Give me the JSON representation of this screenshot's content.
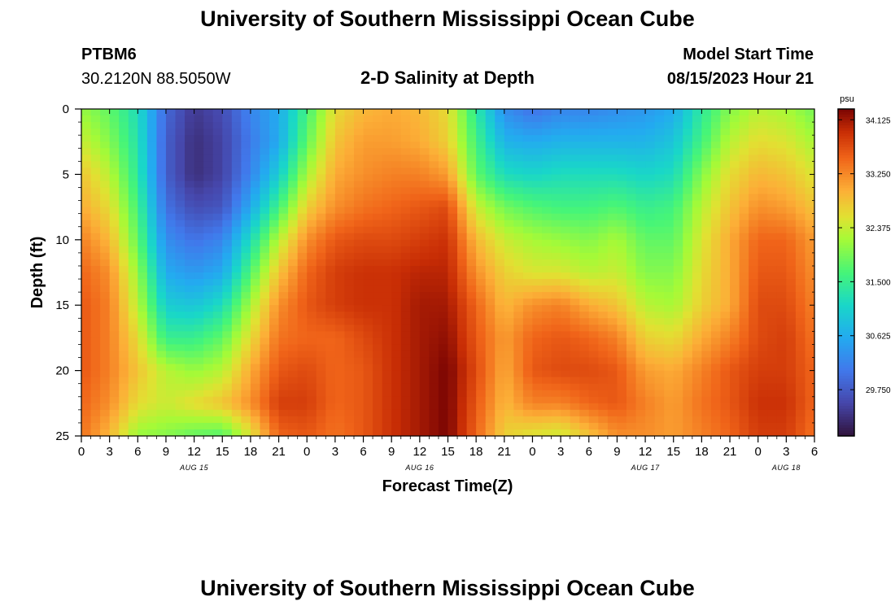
{
  "header": {
    "title": "University of Southern Mississippi Ocean Cube",
    "station": "PTBM6",
    "coords": "30.2120N  88.5050W",
    "plot_title": "2-D Salinity at Depth",
    "run_label": "Model Start Time",
    "run_time": "08/15/2023 Hour 21"
  },
  "footer": {
    "title": "University of Southern Mississippi Ocean Cube"
  },
  "chart_data": {
    "type": "heatmap",
    "title": "2-D Salinity at Depth",
    "xlabel": "Forecast Time(Z)",
    "ylabel": "Depth (ft)",
    "ylim": [
      0,
      25
    ],
    "y_ticks": [
      0,
      5,
      10,
      15,
      20,
      25
    ],
    "x_tick_labels": [
      "0",
      "3",
      "6",
      "9",
      "12",
      "15",
      "18",
      "21",
      "0",
      "3",
      "6",
      "9",
      "12",
      "15",
      "18",
      "21",
      "0",
      "3",
      "6",
      "9",
      "12",
      "15",
      "18",
      "21",
      "0",
      "3",
      "6"
    ],
    "day_labels": [
      {
        "label": "AUG 15",
        "hours": 12
      },
      {
        "label": "AUG 16",
        "hours": 36
      },
      {
        "label": "AUG 17",
        "hours": 60
      },
      {
        "label": "AUG 18",
        "hours": 75
      }
    ],
    "colorbar": {
      "unit": "psu",
      "range": [
        29.0,
        34.3
      ],
      "ticks": [
        "34.125",
        "33.250",
        "32.375",
        "31.500",
        "30.625",
        "29.750"
      ],
      "tick_values": [
        34.125,
        33.25,
        32.375,
        31.5,
        30.625,
        29.75
      ]
    },
    "depths_ft": [
      0,
      2.5,
      5,
      7.5,
      10,
      12.5,
      15,
      17.5,
      20,
      22.5,
      25
    ],
    "hours": [
      0,
      3,
      6,
      9,
      12,
      15,
      18,
      21,
      24,
      27,
      30,
      33,
      36,
      39,
      42,
      45,
      48,
      51,
      54,
      57,
      60,
      63,
      66,
      69,
      72,
      75,
      78
    ],
    "salinity_psu": [
      [
        32.1,
        31.8,
        31.2,
        29.9,
        29.4,
        29.6,
        30.2,
        30.6,
        31.6,
        32.6,
        32.9,
        33.0,
        32.9,
        32.6,
        31.4,
        30.3,
        30.0,
        30.2,
        30.2,
        30.3,
        30.4,
        30.6,
        31.4,
        32.0,
        32.3,
        32.2,
        31.9
      ],
      [
        32.4,
        32.0,
        31.3,
        29.8,
        29.3,
        29.5,
        30.1,
        30.6,
        31.8,
        32.8,
        33.1,
        33.1,
        33.0,
        32.7,
        31.6,
        30.7,
        30.6,
        30.7,
        30.7,
        30.7,
        30.7,
        30.9,
        31.6,
        32.3,
        32.6,
        32.5,
        32.2
      ],
      [
        32.8,
        32.3,
        31.4,
        29.8,
        29.3,
        29.5,
        30.2,
        31.0,
        32.2,
        33.0,
        33.2,
        33.3,
        33.3,
        33.1,
        31.8,
        31.2,
        31.1,
        31.2,
        31.2,
        31.2,
        31.1,
        31.2,
        32.0,
        32.6,
        32.9,
        32.8,
        32.5
      ],
      [
        33.0,
        32.6,
        31.6,
        30.0,
        29.6,
        29.7,
        30.6,
        31.6,
        32.7,
        33.2,
        33.4,
        33.5,
        33.6,
        33.7,
        32.4,
        31.9,
        31.7,
        31.6,
        31.6,
        31.7,
        31.5,
        31.6,
        32.3,
        32.8,
        33.2,
        33.1,
        32.8
      ],
      [
        33.3,
        32.9,
        31.8,
        30.3,
        30.0,
        30.2,
        31.2,
        32.3,
        33.2,
        33.6,
        33.7,
        33.7,
        33.8,
        33.9,
        32.9,
        32.4,
        32.2,
        32.1,
        32.0,
        32.2,
        31.8,
        31.8,
        32.5,
        33.0,
        33.5,
        33.5,
        33.1
      ],
      [
        33.5,
        33.2,
        32.1,
        30.6,
        30.4,
        30.6,
        31.7,
        32.8,
        33.5,
        33.8,
        33.9,
        33.9,
        34.0,
        34.0,
        33.2,
        32.7,
        32.5,
        32.5,
        32.3,
        32.4,
        32.0,
        32.0,
        32.6,
        33.0,
        33.6,
        33.6,
        33.2
      ],
      [
        33.6,
        33.3,
        32.3,
        31.0,
        30.9,
        31.2,
        32.2,
        33.2,
        33.6,
        33.8,
        33.9,
        33.9,
        34.1,
        34.1,
        33.5,
        32.9,
        33.2,
        33.3,
        33.0,
        32.8,
        32.3,
        32.2,
        32.7,
        33.0,
        33.7,
        33.7,
        33.3
      ],
      [
        33.6,
        33.3,
        32.6,
        31.5,
        31.5,
        31.8,
        32.6,
        33.4,
        33.5,
        33.5,
        33.7,
        33.9,
        34.1,
        34.2,
        33.6,
        33.1,
        33.5,
        33.6,
        33.5,
        33.3,
        32.7,
        32.6,
        33.0,
        33.3,
        33.7,
        33.8,
        33.4
      ],
      [
        33.6,
        33.3,
        32.8,
        32.3,
        32.1,
        32.3,
        33.0,
        33.6,
        33.7,
        33.5,
        33.6,
        33.9,
        34.1,
        34.3,
        33.7,
        33.0,
        33.6,
        33.7,
        33.7,
        33.6,
        33.1,
        33.0,
        33.3,
        33.6,
        33.8,
        33.8,
        33.5
      ],
      [
        33.5,
        33.2,
        32.6,
        32.4,
        32.6,
        32.8,
        33.2,
        33.8,
        33.8,
        33.5,
        33.6,
        33.9,
        34.1,
        34.3,
        33.6,
        32.9,
        33.3,
        33.3,
        33.5,
        33.6,
        33.3,
        33.1,
        33.4,
        33.6,
        33.9,
        33.9,
        33.5
      ],
      [
        33.4,
        32.9,
        32.1,
        32.0,
        31.8,
        31.7,
        32.5,
        33.5,
        33.6,
        33.4,
        33.6,
        33.9,
        34.1,
        34.3,
        33.5,
        32.7,
        32.5,
        32.4,
        32.8,
        33.2,
        33.2,
        33.1,
        33.3,
        33.5,
        33.8,
        33.8,
        33.4
      ]
    ]
  }
}
